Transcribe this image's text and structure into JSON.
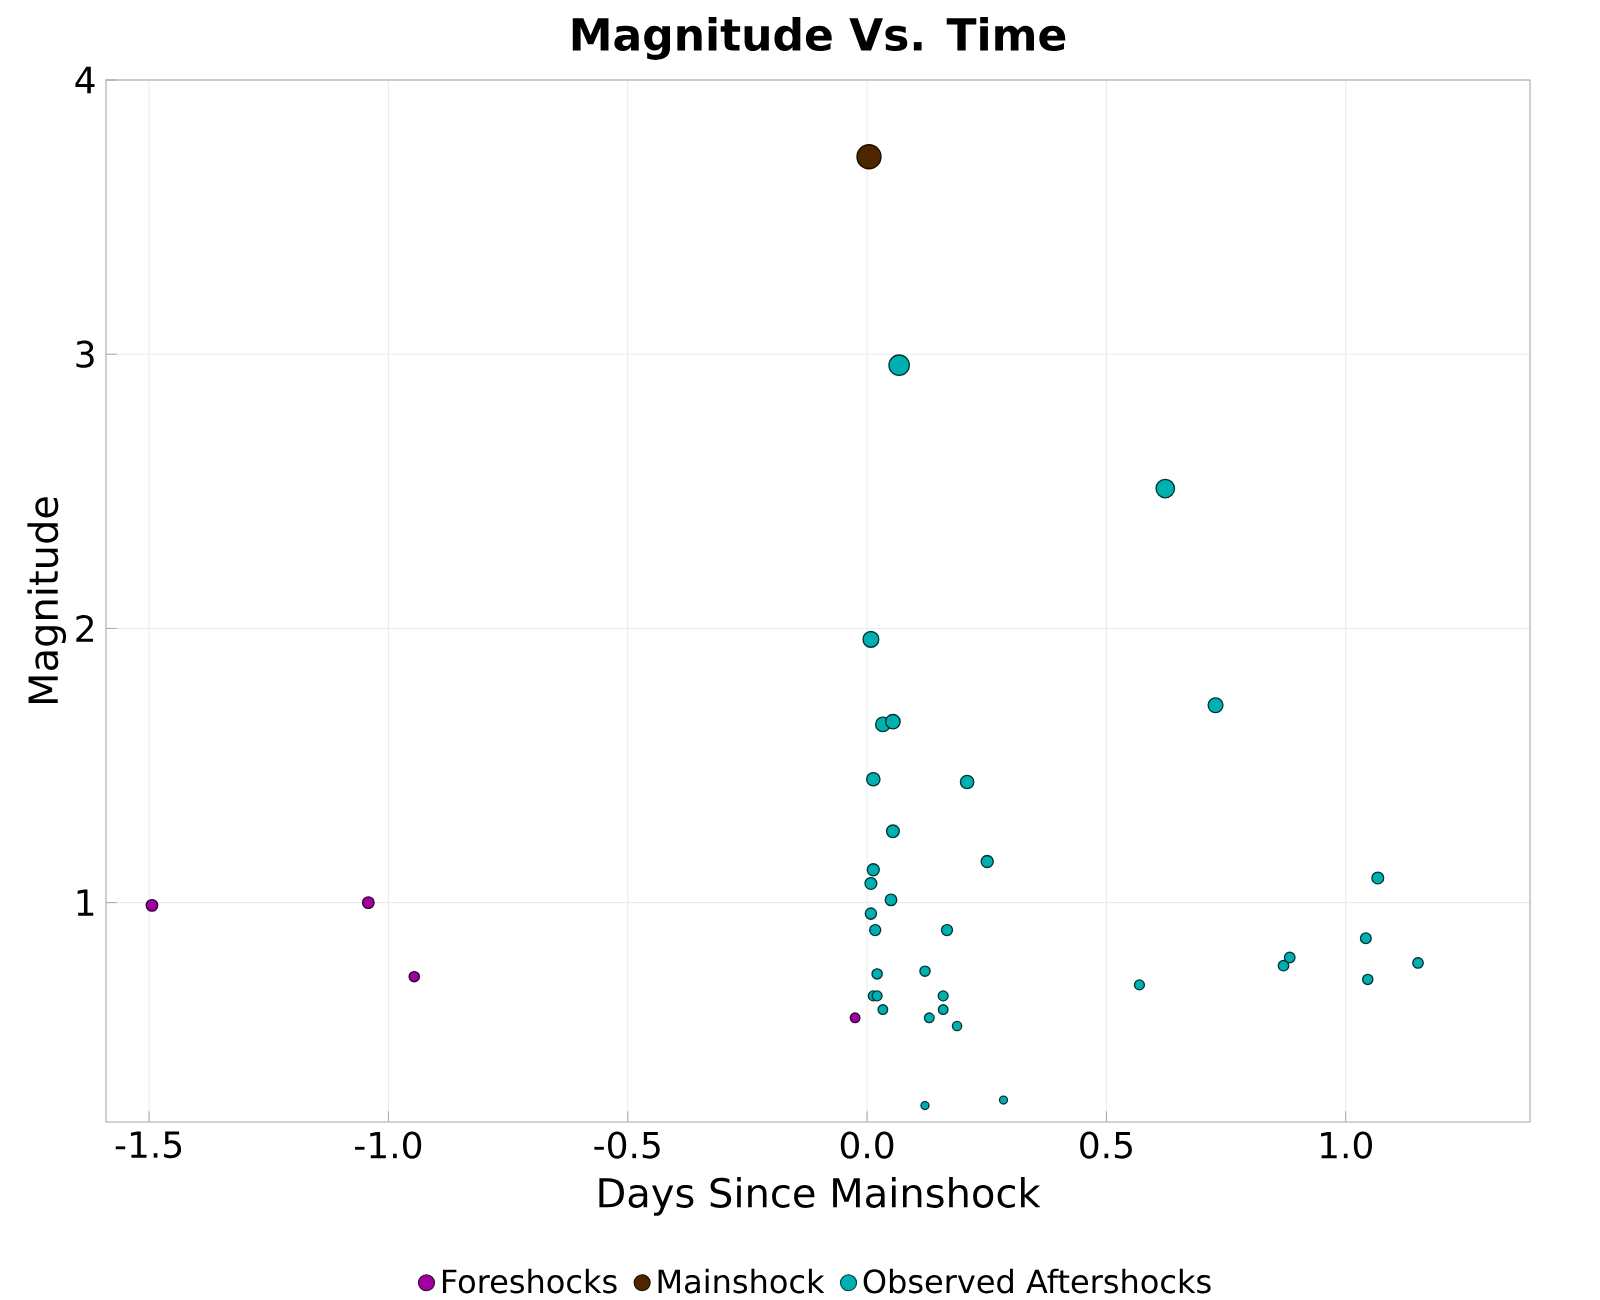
{
  "chart_data": {
    "type": "bubble",
    "title": "Magnitude Vs. Time",
    "xlabel": "Days Since Mainshock",
    "ylabel": "Magnitude",
    "xlim": [
      -1.59,
      1.385
    ],
    "ylim": [
      0.2,
      4
    ],
    "xticks": [
      -1.5,
      {
        "value": -1.0,
        "label": "-1.0"
      },
      -0.5,
      {
        "value": 0,
        "label": "0.0"
      },
      0.5,
      {
        "value": 1.0,
        "label": "1.0"
      }
    ],
    "yticks": [
      1,
      2,
      3,
      4
    ],
    "grid": true,
    "legend": "bottom",
    "series": [
      {
        "name": "Foreshocks",
        "color": "#a000a0",
        "x": [
          -1.494,
          -1.042,
          -0.946,
          -0.025
        ],
        "values": [
          0.99,
          1.0,
          0.73,
          0.58
        ],
        "sizes": [
          0.23,
          0.23,
          0.18,
          0.16
        ]
      },
      {
        "name": "Mainshock",
        "color": "#4d2600",
        "x": [
          0.004
        ],
        "values": [
          3.72
        ],
        "sizes": [
          1
        ]
      },
      {
        "name": "Observed Aftershocks",
        "color": "#00b0b0",
        "x": [
          0.067,
          0.623,
          0.008,
          0.033,
          0.054,
          0.728,
          0.209,
          0.013,
          0.054,
          0.251,
          0.013,
          0.008,
          0.05,
          0.008,
          0.017,
          0.167,
          1.067,
          0.021,
          0.121,
          0.013,
          0.021,
          0.159,
          0.033,
          0.159,
          0.13,
          0.188,
          0.121,
          0.285,
          0.569,
          0.87,
          0.883,
          1.042,
          1.046,
          1.151
        ],
        "values": [
          2.96,
          2.51,
          1.96,
          1.65,
          1.66,
          1.72,
          1.44,
          1.45,
          1.26,
          1.15,
          1.12,
          1.07,
          1.01,
          0.96,
          0.9,
          0.9,
          1.09,
          0.74,
          0.75,
          0.66,
          0.66,
          0.66,
          0.61,
          0.61,
          0.58,
          0.55,
          0.26,
          0.28,
          0.7,
          0.77,
          0.8,
          0.87,
          0.72,
          0.78
        ],
        "sizes": [
          0.72,
          0.59,
          0.43,
          0.36,
          0.36,
          0.38,
          0.31,
          0.31,
          0.28,
          0.25,
          0.25,
          0.24,
          0.23,
          0.22,
          0.21,
          0.21,
          0.24,
          0.18,
          0.18,
          0.17,
          0.17,
          0.17,
          0.16,
          0.16,
          0.16,
          0.15,
          0.11,
          0.11,
          0.17,
          0.19,
          0.19,
          0.2,
          0.18,
          0.19
        ]
      }
    ]
  }
}
